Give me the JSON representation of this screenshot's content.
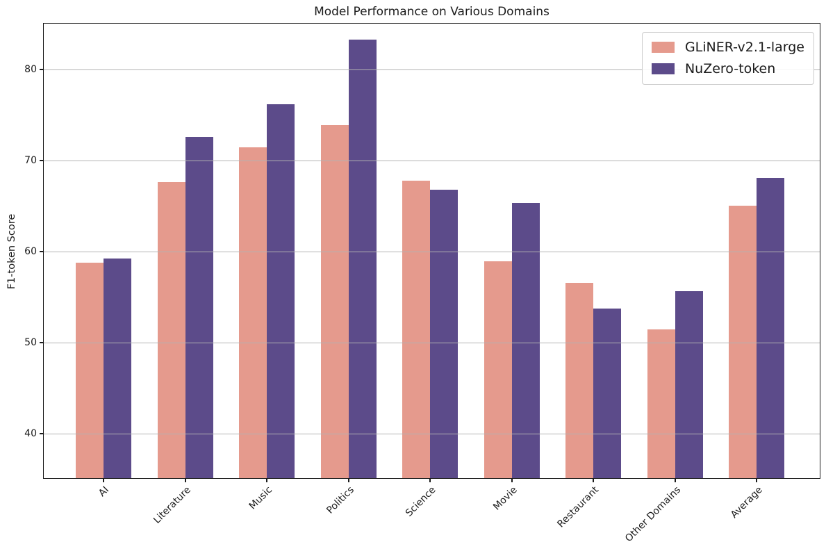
{
  "chart_data": {
    "type": "bar",
    "title": "Model Performance on Various Domains",
    "xlabel": "",
    "ylabel": "F1-token Score",
    "categories": [
      "AI",
      "Literature",
      "Music",
      "Politics",
      "Science",
      "Movie",
      "Restaurant",
      "Other Domains",
      "Average"
    ],
    "series": [
      {
        "name": "GLiNER-v2.1-large",
        "color": "#e59a8d",
        "values": [
          58.6,
          67.5,
          71.3,
          73.7,
          67.6,
          58.8,
          56.4,
          51.3,
          64.9
        ]
      },
      {
        "name": "NuZero-token",
        "color": "#5c4b8a",
        "values": [
          59.1,
          72.4,
          76.0,
          83.1,
          66.6,
          65.2,
          53.6,
          55.5,
          67.9
        ]
      }
    ],
    "ylim": [
      35,
      85
    ],
    "yticks": [
      40,
      50,
      60,
      70,
      80
    ],
    "grid": true,
    "grid_color": "#b2b2b2",
    "legend_position": "upper right",
    "bar_colors": {
      "GLiNER-v2.1-large": "#e59a8d",
      "NuZero-token": "#5c4b8a"
    }
  }
}
